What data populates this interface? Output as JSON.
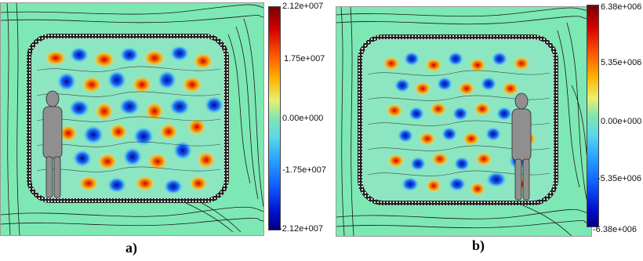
{
  "panels": [
    {
      "caption": "a)",
      "colorbar_ticks": [
        "2.12e+007",
        "1.75e+007",
        "0.00e+000",
        "-1.75e+007",
        "-2.12e+007"
      ]
    },
    {
      "caption": "b)",
      "colorbar_ticks": [
        "6.38e+006",
        "5.35e+006",
        "0.00e+000",
        "-5.35e+006",
        "-6.38e+006"
      ]
    }
  ],
  "colors": {
    "background_field": "#7de8b4",
    "contour": "#1a1a1a",
    "cavity_border": "#222222"
  }
}
